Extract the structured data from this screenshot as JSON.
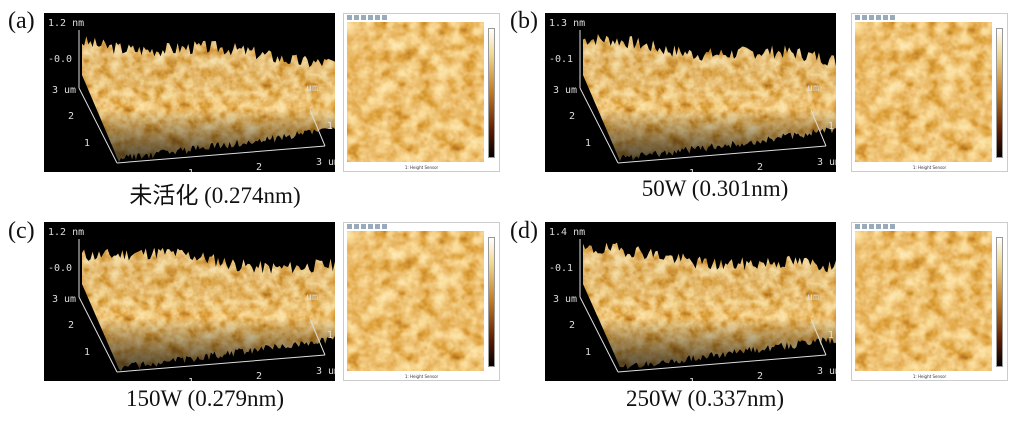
{
  "panels": [
    {
      "label": "(a)",
      "caption": "未活化  (0.274nm)",
      "z_max": "1.2 nm",
      "z_mid": "-0.0",
      "seed": 3
    },
    {
      "label": "(b)",
      "caption": "50W (0.301nm)",
      "z_max": "1.3 nm",
      "z_mid": "-0.1",
      "seed": 7
    },
    {
      "label": "(c)",
      "caption": "150W (0.279nm)",
      "z_max": "1.2 nm",
      "z_mid": "-0.0",
      "seed": 11
    },
    {
      "label": "(d)",
      "caption": "250W (0.337nm)",
      "z_max": "1.4 nm",
      "z_mid": "-0.1",
      "seed": 19
    }
  ],
  "axis": {
    "y_top": "3 um",
    "y2": "2",
    "y1": "1",
    "x1": "1",
    "x2": "2",
    "x_end": "3 um",
    "r1": "1",
    "r_unit": "um"
  },
  "map_footer": "1: Height Sensor",
  "colors": {
    "background": "#000000",
    "highlight": "#fff2c8",
    "mid": "#c07820",
    "dark": "#3a1000"
  }
}
